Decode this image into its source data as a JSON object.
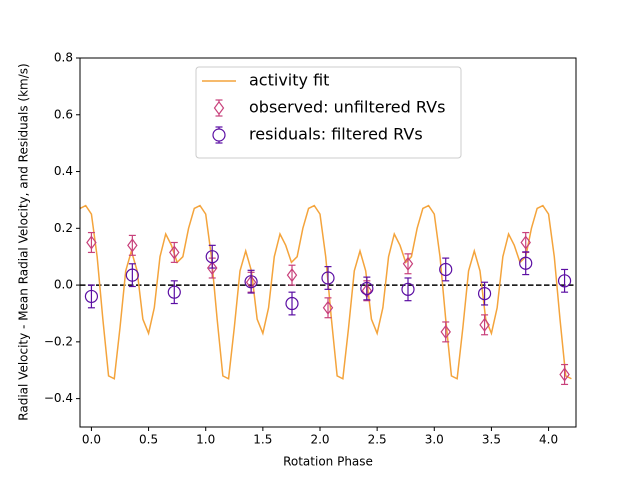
{
  "chart_data": {
    "type": "scatter",
    "xlabel": "Rotation Phase",
    "ylabel": "Radial Velocity - Mean Radial Velocity, and Residuals (km/s)",
    "xlim": [
      -0.1,
      4.24
    ],
    "ylim": [
      -0.5,
      0.8
    ],
    "xticks": [
      {
        "value": 0,
        "label": "0.0"
      },
      {
        "value": 0.5,
        "label": "0.5"
      },
      {
        "value": 1,
        "label": "1.0"
      },
      {
        "value": 1.5,
        "label": "1.5"
      },
      {
        "value": 2,
        "label": "2.0"
      },
      {
        "value": 2.5,
        "label": "2.5"
      },
      {
        "value": 3,
        "label": "3.0"
      },
      {
        "value": 3.5,
        "label": "3.5"
      },
      {
        "value": 4,
        "label": "4.0"
      }
    ],
    "yticks": [
      {
        "value": -0.4,
        "label": "−0.4"
      },
      {
        "value": -0.2,
        "label": "−0.2"
      },
      {
        "value": 0,
        "label": "0.0"
      },
      {
        "value": 0.2,
        "label": "0.2"
      },
      {
        "value": 0.4,
        "label": "0.4"
      },
      {
        "value": 0.6,
        "label": "0.6"
      },
      {
        "value": 0.8,
        "label": "0.8"
      }
    ],
    "reference_line": 0,
    "legend": "upper center",
    "series": [
      {
        "name": "activity fit",
        "type": "line",
        "color": "#f4a43c",
        "x": [
          -0.1,
          -0.05,
          0,
          0.05,
          0.1,
          0.15,
          0.2,
          0.25,
          0.3,
          0.35,
          0.4,
          0.45,
          0.5,
          0.55,
          0.6,
          0.65,
          0.7,
          0.75,
          0.8,
          0.85,
          0.9,
          0.95,
          1,
          1.05,
          1.1,
          1.15,
          1.2,
          1.25,
          1.3,
          1.35,
          1.4,
          1.45,
          1.5,
          1.55,
          1.6,
          1.65,
          1.7,
          1.75,
          1.8,
          1.85,
          1.9,
          1.95,
          2,
          2.05,
          2.1,
          2.15,
          2.2,
          2.25,
          2.3,
          2.35,
          2.4,
          2.45,
          2.5,
          2.55,
          2.6,
          2.65,
          2.7,
          2.75,
          2.8,
          2.85,
          2.9,
          2.95,
          3,
          3.05,
          3.1,
          3.15,
          3.2,
          3.25,
          3.3,
          3.35,
          3.4,
          3.45,
          3.5,
          3.55,
          3.6,
          3.65,
          3.7,
          3.75,
          3.8,
          3.85,
          3.9,
          3.95,
          4,
          4.05,
          4.1,
          4.15,
          4.2
        ],
        "values": [
          0.27,
          0.28,
          0.25,
          0.1,
          -0.12,
          -0.32,
          -0.33,
          -0.15,
          0.05,
          0.12,
          0.05,
          -0.12,
          -0.17,
          -0.08,
          0.1,
          0.18,
          0.14,
          0.08,
          0.1,
          0.2,
          0.27,
          0.28,
          0.25,
          0.1,
          -0.12,
          -0.32,
          -0.33,
          -0.15,
          0.05,
          0.12,
          0.05,
          -0.12,
          -0.17,
          -0.08,
          0.1,
          0.18,
          0.14,
          0.08,
          0.1,
          0.2,
          0.27,
          0.28,
          0.25,
          0.1,
          -0.12,
          -0.32,
          -0.33,
          -0.15,
          0.05,
          0.12,
          0.05,
          -0.12,
          -0.17,
          -0.08,
          0.1,
          0.18,
          0.14,
          0.08,
          0.1,
          0.2,
          0.27,
          0.28,
          0.25,
          0.1,
          -0.12,
          -0.32,
          -0.33,
          -0.15,
          0.05,
          0.12,
          0.05,
          -0.12,
          -0.17,
          -0.08,
          0.1,
          0.18,
          0.14,
          0.08,
          0.1,
          0.2,
          0.27,
          0.28,
          0.25,
          0.1,
          -0.12,
          -0.32,
          -0.33
        ]
      },
      {
        "name": "observed: unfiltered RVs",
        "type": "diamond",
        "color": "#c8417b",
        "x": [
          0,
          0.358,
          0.725,
          1.057,
          1.397,
          1.755,
          2.07,
          2.41,
          2.77,
          3.1,
          3.44,
          3.8,
          4.14
        ],
        "values": [
          0.15,
          0.14,
          0.115,
          0.06,
          0.01,
          0.035,
          -0.08,
          -0.02,
          0.075,
          -0.165,
          -0.14,
          0.15,
          -0.315
        ],
        "errors": [
          0.035,
          0.035,
          0.035,
          0.035,
          0.035,
          0.035,
          0.035,
          0.035,
          0.035,
          0.035,
          0.035,
          0.035,
          0.035
        ]
      },
      {
        "name": "residuals: filtered RVs",
        "type": "circle",
        "color": "#5b0ea3",
        "x": [
          0,
          0.358,
          0.725,
          1.057,
          1.397,
          1.755,
          2.07,
          2.41,
          2.77,
          3.1,
          3.44,
          3.8,
          4.14
        ],
        "values": [
          -0.04,
          0.035,
          -0.025,
          0.1,
          0.012,
          -0.065,
          0.025,
          -0.012,
          -0.015,
          0.055,
          -0.03,
          0.077,
          0.015
        ],
        "errors": [
          0.04,
          0.04,
          0.04,
          0.04,
          0.04,
          0.04,
          0.04,
          0.04,
          0.04,
          0.04,
          0.04,
          0.04,
          0.04
        ]
      }
    ]
  }
}
